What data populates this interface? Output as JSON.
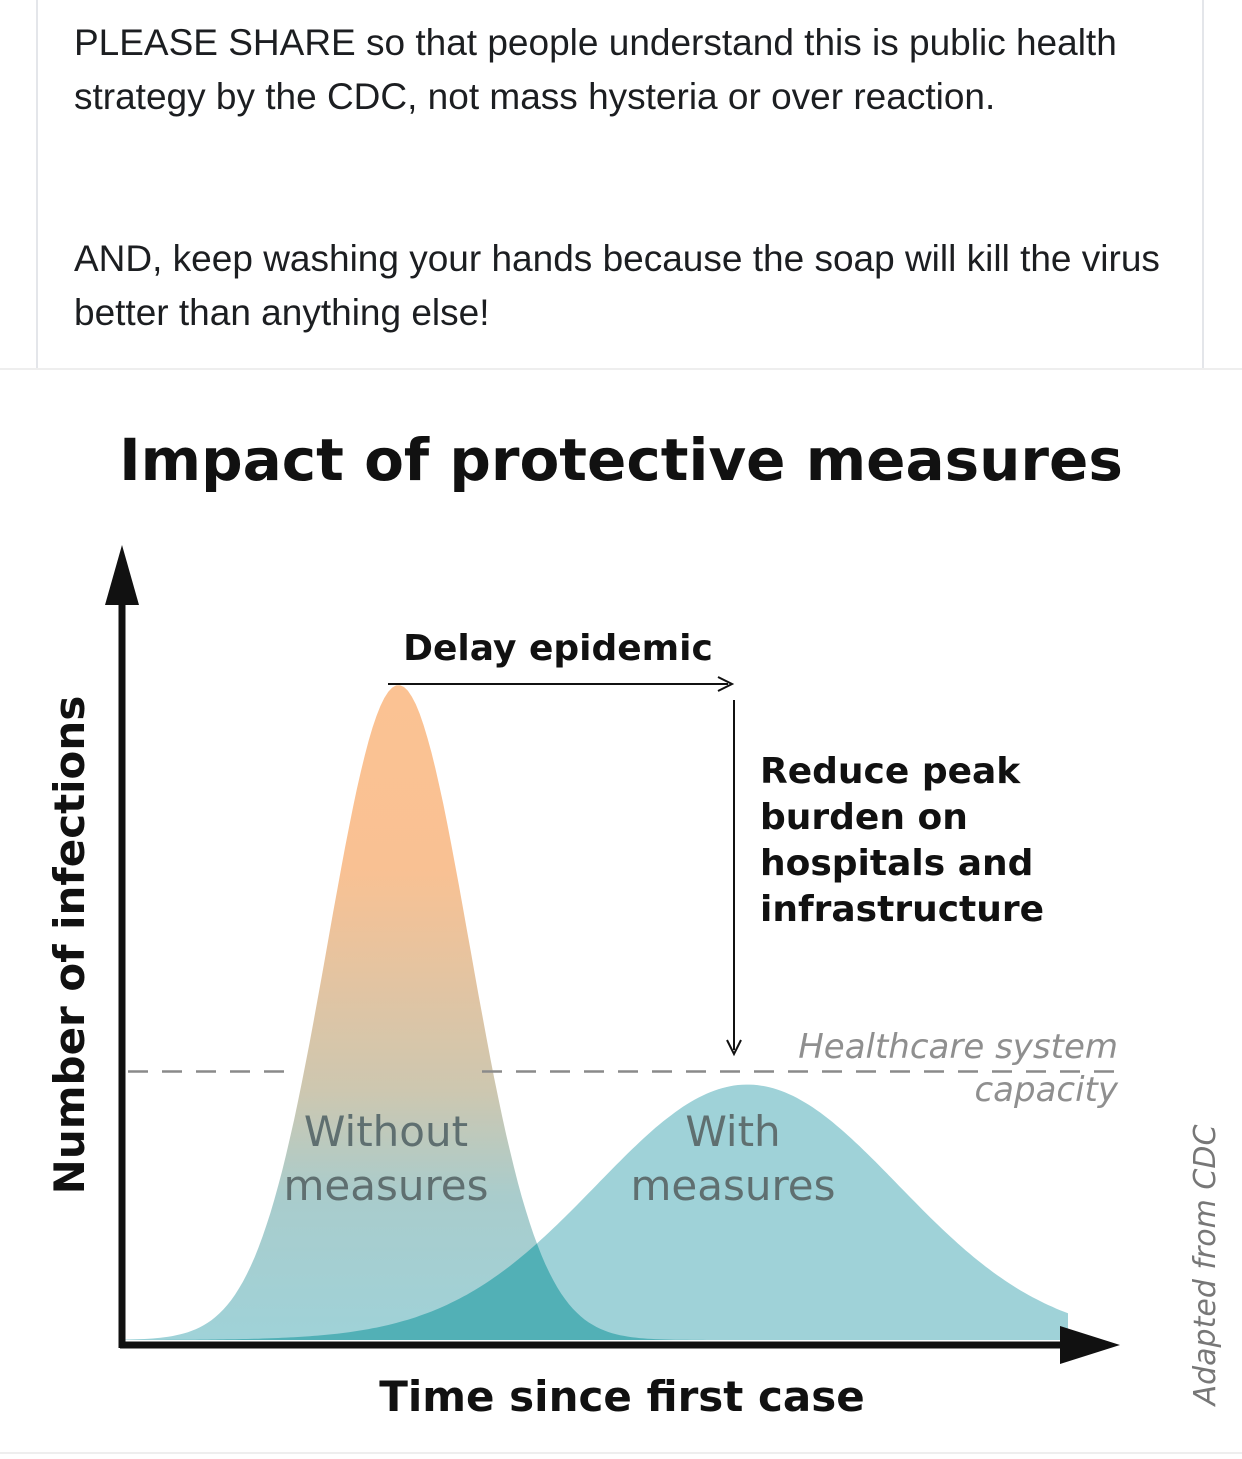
{
  "post": {
    "paragraph1": "PLEASE SHARE so that people understand this is public health strategy by the CDC, not mass hysteria or over reaction.",
    "paragraph2": "AND, keep washing your hands because the soap will kill the virus better than anything else!"
  },
  "chart_data": {
    "type": "area",
    "title": "Impact of protective measures",
    "xlabel": "Time since first case",
    "ylabel": "Number of infections",
    "grid": false,
    "series": [
      {
        "name": "Without measures",
        "label_lines": [
          "Without",
          "measures"
        ],
        "color": "#f9c193",
        "peak_time": 0.29,
        "peak_value": 1.0,
        "spread": 0.075
      },
      {
        "name": "With measures",
        "label_lines": [
          "With",
          "measures"
        ],
        "color": "#9fd2d8",
        "peak_time": 0.66,
        "peak_value": 0.39,
        "spread": 0.16
      }
    ],
    "reference_line": {
      "label_lines": [
        "Healthcare system",
        "capacity"
      ],
      "value": 0.41,
      "style": "dashed"
    },
    "annotations": [
      {
        "id": "delay",
        "text": "Delay epidemic"
      },
      {
        "id": "reduce",
        "lines": [
          "Reduce peak",
          "burden on",
          "hospitals and",
          "infrastructure"
        ]
      }
    ],
    "source": "Adapted from CDC",
    "colors": {
      "axis": "#111111",
      "overlap": "#52b0b6",
      "dash": "#8a8a8a",
      "capacity_text": "#8f8f8f",
      "series_label": "#5f6f70"
    }
  }
}
